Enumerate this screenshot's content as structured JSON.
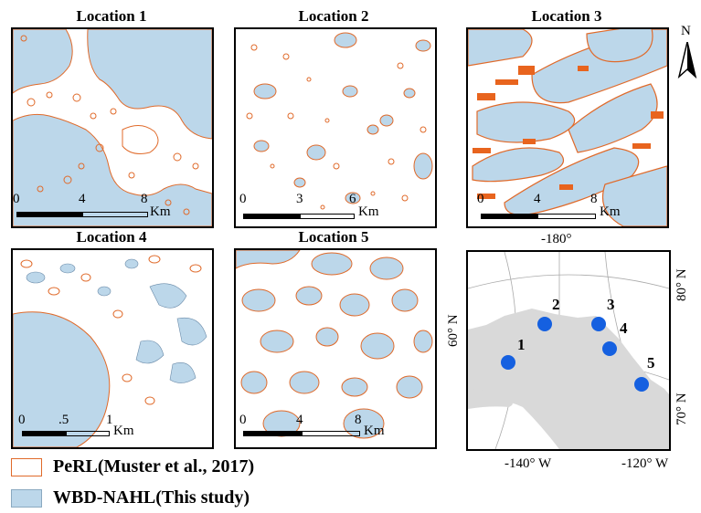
{
  "panels": [
    {
      "title": "Location 1",
      "scale": {
        "ticks": [
          "0",
          "4",
          "8"
        ],
        "unit": "Km"
      }
    },
    {
      "title": "Location 2",
      "scale": {
        "ticks": [
          "0",
          "3",
          "6"
        ],
        "unit": "Km"
      }
    },
    {
      "title": "Location 3",
      "scale": {
        "ticks": [
          "0",
          "4",
          "8"
        ],
        "unit": "Km"
      }
    },
    {
      "title": "Location 4",
      "scale": {
        "ticks": [
          "0",
          ".5",
          "1"
        ],
        "unit": "Km"
      }
    },
    {
      "title": "Location 5",
      "scale": {
        "ticks": [
          "0",
          "4",
          "8"
        ],
        "unit": "Km"
      }
    }
  ],
  "north_arrow": {
    "label": "N"
  },
  "overview_map": {
    "top_label": "-180°",
    "bottom_labels": [
      "-140° W",
      "-120° W"
    ],
    "left_label": "60° N",
    "right_labels": [
      "80° N",
      "70° N"
    ],
    "sites": [
      "1",
      "2",
      "3",
      "4",
      "5"
    ],
    "site_color": "#1560e0",
    "land_color": "#d9d9d9"
  },
  "legend": [
    {
      "label": "PeRL(Muster et al., 2017)",
      "style": "outline",
      "color": "#e06a2a"
    },
    {
      "label": "WBD-NAHL(This study)",
      "style": "fill",
      "color": "#bcd7ea"
    }
  ],
  "colors": {
    "water": "#bcd7ea",
    "perl": "#e06a2a",
    "perl_dense": "#e8641e"
  }
}
